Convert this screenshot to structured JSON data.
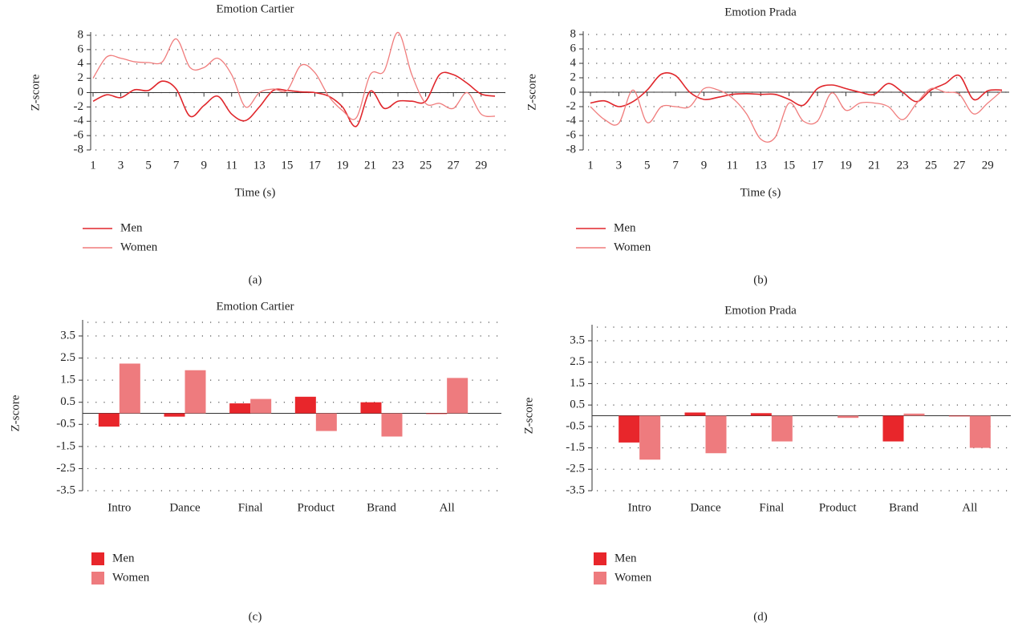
{
  "chart_data": [
    {
      "type": "line",
      "title": "Emotion Cartier",
      "xlabel": "Time (s)",
      "ylabel": "Z-score",
      "panel_label": "(a)",
      "x": [
        1,
        2,
        3,
        4,
        5,
        6,
        7,
        8,
        9,
        10,
        11,
        12,
        13,
        14,
        15,
        16,
        17,
        18,
        19,
        20,
        21,
        22,
        23,
        24,
        25,
        26,
        27,
        28,
        29,
        30
      ],
      "series": [
        {
          "name": "Men",
          "color": "#e0262b",
          "values": [
            -1.2,
            -0.3,
            -0.7,
            0.4,
            0.3,
            1.6,
            0.5,
            -3.3,
            -1.8,
            -0.5,
            -3,
            -3.9,
            -2,
            0.3,
            0.3,
            0.1,
            0,
            -0.5,
            -2,
            -4.7,
            0.2,
            -2.2,
            -1.2,
            -1.2,
            -1.2,
            2.5,
            2.5,
            1.3,
            -0.2,
            -0.5
          ]
        },
        {
          "name": "Women",
          "color": "#f07c7c",
          "values": [
            2,
            5,
            4.8,
            4.3,
            4.2,
            4.3,
            7.5,
            3.5,
            3.5,
            4.8,
            2.5,
            -2,
            0,
            0.5,
            0.3,
            3.8,
            2.8,
            -0.5,
            -2.5,
            -3.5,
            2.5,
            3,
            8.4,
            2.5,
            -1.5,
            -1.5,
            -2.2,
            0,
            -3,
            -3.3
          ]
        }
      ],
      "xlim": [
        1,
        30
      ],
      "xticks": [
        1,
        3,
        5,
        7,
        9,
        11,
        13,
        15,
        17,
        19,
        21,
        23,
        25,
        27,
        29
      ],
      "ylim": [
        -8,
        8
      ],
      "yticks": [
        -8,
        -6,
        -4,
        -2,
        0,
        2,
        4,
        6,
        8
      ],
      "grid": true
    },
    {
      "type": "line",
      "title": "Emotion Prada",
      "xlabel": "Time (s)",
      "ylabel": "Z-score",
      "panel_label": "(b)",
      "x": [
        1,
        2,
        3,
        4,
        5,
        6,
        7,
        8,
        9,
        10,
        11,
        12,
        13,
        14,
        15,
        16,
        17,
        18,
        19,
        20,
        21,
        22,
        23,
        24,
        25,
        26,
        27,
        28,
        29,
        30
      ],
      "series": [
        {
          "name": "Men",
          "color": "#e0262b",
          "values": [
            -1.5,
            -1.2,
            -2,
            -1.3,
            0.3,
            2.5,
            2.3,
            0,
            -1,
            -0.7,
            -0.3,
            -0.2,
            -0.3,
            -0.3,
            -1,
            -1.8,
            0.5,
            1,
            0.5,
            0,
            -0.3,
            1.2,
            0,
            -1.3,
            0.3,
            1.2,
            2.3,
            -1,
            0.2,
            0.3
          ]
        },
        {
          "name": "Women",
          "color": "#f07c7c",
          "values": [
            -2,
            -3.8,
            -4.3,
            0.3,
            -4.2,
            -2,
            -2,
            -2,
            0.5,
            0.3,
            -0.8,
            -3,
            -6.5,
            -6.3,
            -1.5,
            -4,
            -4,
            -0.1,
            -2.5,
            -1.5,
            -1.5,
            -2,
            -3.8,
            -1.5,
            0.5,
            0,
            -0.3,
            -3,
            -1.5,
            0.2
          ]
        }
      ],
      "xlim": [
        1,
        30
      ],
      "xticks": [
        1,
        3,
        5,
        7,
        9,
        11,
        13,
        15,
        17,
        19,
        21,
        23,
        25,
        27,
        29
      ],
      "ylim": [
        -8,
        8
      ],
      "yticks": [
        -8,
        -6,
        -4,
        -2,
        0,
        2,
        4,
        6,
        8
      ],
      "grid": true
    },
    {
      "type": "bar",
      "title": "Emotion Cartier",
      "ylabel": "Z-score",
      "panel_label": "(c)",
      "categories": [
        "Intro",
        "Dance",
        "Final",
        "Product",
        "Brand",
        "All"
      ],
      "series": [
        {
          "name": "Men",
          "color": "#e8262b",
          "values": [
            -0.6,
            -0.15,
            0.45,
            0.75,
            0.5,
            -0.03
          ]
        },
        {
          "name": "Women",
          "color": "#ee7b7e",
          "values": [
            2.25,
            1.95,
            0.65,
            -0.8,
            -1.05,
            1.6
          ]
        }
      ],
      "ylim": [
        -3.5,
        3.5
      ],
      "yticks": [
        -3.5,
        -2.5,
        -1.5,
        -0.5,
        0.5,
        1.5,
        2.5,
        3.5
      ],
      "grid": true
    },
    {
      "type": "bar",
      "title": "Emotion Prada",
      "ylabel": "Z-score",
      "panel_label": "(d)",
      "categories": [
        "Intro",
        "Dance",
        "Final",
        "Product",
        "Brand",
        "All"
      ],
      "series": [
        {
          "name": "Men",
          "color": "#e8262b",
          "values": [
            -1.25,
            0.15,
            0.12,
            0,
            -1.2,
            -0.03
          ]
        },
        {
          "name": "Women",
          "color": "#ee7b7e",
          "values": [
            -2.05,
            -1.75,
            -1.2,
            -0.1,
            0.1,
            -1.5
          ]
        }
      ],
      "ylim": [
        -3.5,
        3.5
      ],
      "yticks": [
        -3.5,
        -2.5,
        -1.5,
        -0.5,
        0.5,
        1.5,
        2.5,
        3.5
      ],
      "grid": true
    }
  ]
}
